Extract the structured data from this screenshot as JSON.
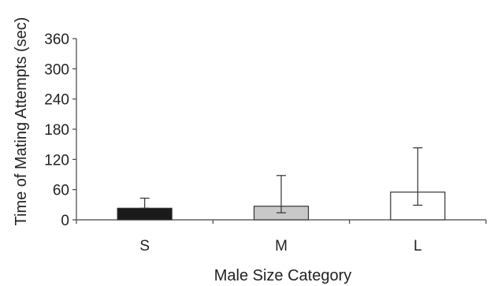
{
  "chart_data": {
    "type": "bar",
    "title": "",
    "xlabel": "Male Size Category",
    "ylabel": "Time of Mating Attempts (sec)",
    "categories": [
      "S",
      "M",
      "L"
    ],
    "values": [
      23,
      27,
      55
    ],
    "error_upper": [
      43,
      88,
      143
    ],
    "error_lower": [
      23,
      14,
      29
    ],
    "bar_colors": [
      "#1a1a1a",
      "#c8c8c8",
      "#ffffff"
    ],
    "ylim": [
      0,
      360
    ],
    "yticks": [
      0,
      60,
      120,
      180,
      240,
      300,
      360
    ],
    "ytick_labels": [
      "0",
      "60",
      "120",
      "180",
      "240",
      "300",
      "360"
    ],
    "grid": false,
    "legend": "none"
  }
}
